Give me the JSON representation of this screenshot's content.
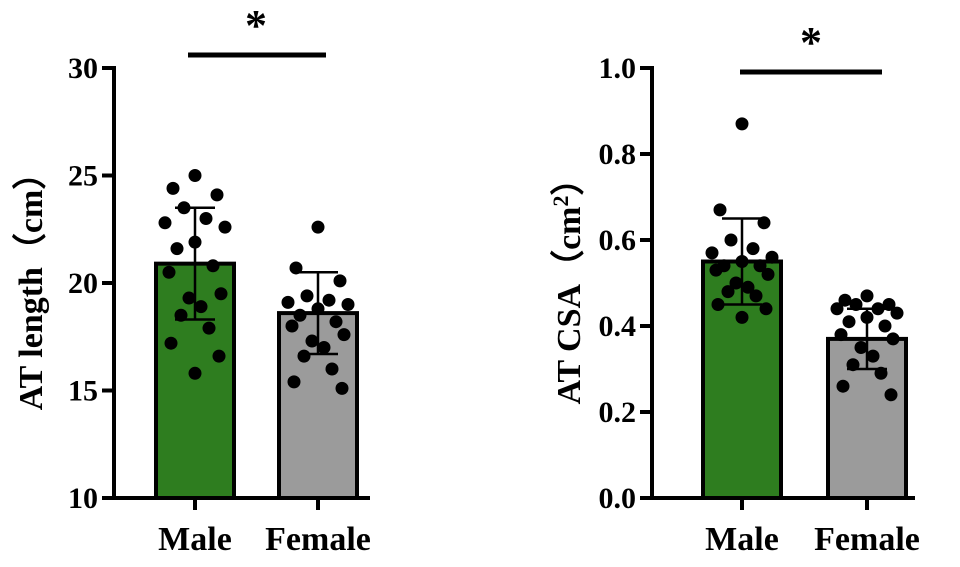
{
  "chart_data": [
    {
      "type": "bar",
      "categories": [
        "Male",
        "Female"
      ],
      "ylabel": "AT length（cm）",
      "ylabel_main": "AT length",
      "ylabel_unit": "（cm）",
      "ylim": [
        10,
        30
      ],
      "yticks": [
        10,
        15,
        20,
        25,
        30
      ],
      "ytick_labels": [
        "10",
        "15",
        "20",
        "25",
        "30"
      ],
      "means": [
        20.9,
        18.6
      ],
      "sd": [
        2.6,
        1.9
      ],
      "colors": [
        "#2e7d1f",
        "#9b9b9b"
      ],
      "points": [
        [
          25.0,
          24.4,
          24.1,
          23.5,
          23.0,
          22.8,
          22.6,
          21.9,
          21.6,
          20.8,
          20.5,
          19.5,
          19.3,
          18.9,
          18.5,
          17.9,
          17.2,
          16.6,
          15.8
        ],
        [
          22.6,
          20.7,
          20.1,
          19.4,
          19.2,
          19.1,
          19.0,
          18.8,
          18.5,
          18.2,
          18.0,
          17.6,
          17.3,
          17.0,
          16.6,
          16.0,
          15.4,
          15.1
        ]
      ],
      "significance": "*",
      "grid": false,
      "legend": "none"
    },
    {
      "type": "bar",
      "categories": [
        "Male",
        "Female"
      ],
      "ylabel": "AT CSA（cm²）",
      "ylabel_main": "AT CSA",
      "ylabel_unit_open": "（cm",
      "ylabel_unit_sup": "2",
      "ylabel_unit_close": "）",
      "ylim": [
        0.0,
        1.0
      ],
      "yticks": [
        0.0,
        0.2,
        0.4,
        0.6,
        0.8,
        1.0
      ],
      "ytick_labels": [
        "0.0",
        "0.2",
        "0.4",
        "0.6",
        "0.8",
        "1.0"
      ],
      "means": [
        0.55,
        0.37
      ],
      "sd": [
        0.1,
        0.07
      ],
      "colors": [
        "#2e7d1f",
        "#9b9b9b"
      ],
      "points": [
        [
          0.87,
          0.67,
          0.64,
          0.6,
          0.58,
          0.57,
          0.56,
          0.55,
          0.54,
          0.54,
          0.53,
          0.52,
          0.5,
          0.49,
          0.48,
          0.47,
          0.45,
          0.44,
          0.42
        ],
        [
          0.47,
          0.46,
          0.45,
          0.45,
          0.44,
          0.44,
          0.43,
          0.42,
          0.41,
          0.4,
          0.38,
          0.37,
          0.35,
          0.33,
          0.31,
          0.29,
          0.26,
          0.24
        ]
      ],
      "significance": "*",
      "grid": false,
      "legend": "none"
    }
  ]
}
